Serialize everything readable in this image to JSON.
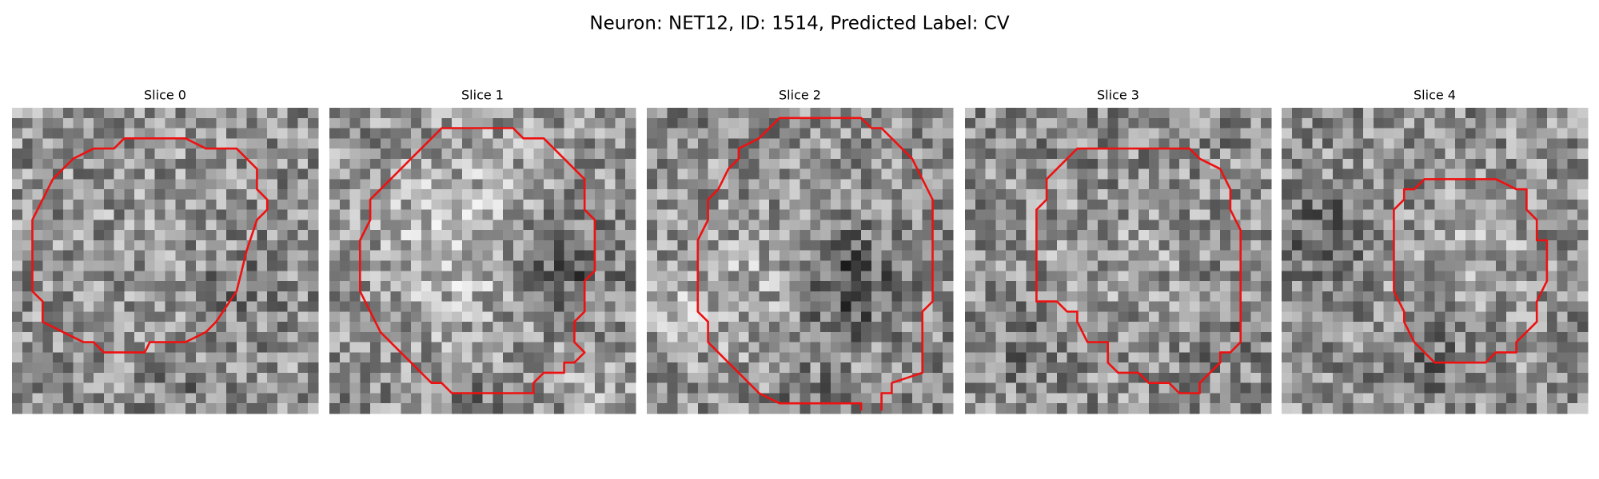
{
  "title": "Neuron: NET12, ID: 1514, Predicted Label: CV",
  "panels": [
    {
      "title": "Slice 0"
    },
    {
      "title": "Slice 1"
    },
    {
      "title": "Slice 2"
    },
    {
      "title": "Slice 3"
    },
    {
      "title": "Slice 4"
    }
  ]
}
